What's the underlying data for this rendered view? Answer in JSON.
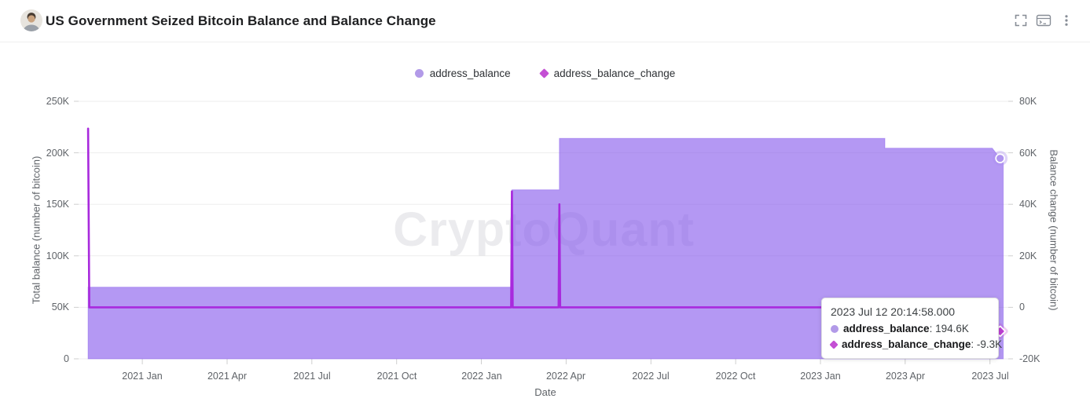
{
  "header": {
    "title": "US Government Seized Bitcoin Balance and Balance Change"
  },
  "icons": {
    "fullscreen": "corner-brackets",
    "console": "terminal-window",
    "menu": "vertical-three-dots",
    "balance_series_marker": "circle",
    "change_series_marker": "diamond"
  },
  "colors": {
    "area_fill": "#B198F1",
    "area_base": "#8658EB",
    "change_line": "#A829DD",
    "legend_circle": "#B29AE8",
    "legend_diamond": "#C44FD4",
    "grid": "#EDEDED",
    "tick_text": "#5F6368"
  },
  "legend": {
    "items": [
      {
        "label": "address_balance",
        "marker": "circle",
        "color": "#B29AE8"
      },
      {
        "label": "address_balance_change",
        "marker": "diamond",
        "color": "#C44FD4"
      }
    ]
  },
  "axes": {
    "left": {
      "title": "Total balance (number of bitcoin)",
      "ticks": [
        "250K",
        "200K",
        "150K",
        "100K",
        "50K",
        "0"
      ]
    },
    "right": {
      "title": "Balance change (number of bitcoin)",
      "ticks": [
        "80K",
        "60K",
        "40K",
        "20K",
        "0",
        "-20K"
      ]
    },
    "x": {
      "title": "Date",
      "ticks": [
        "2021 Jan",
        "2021 Apr",
        "2021 Jul",
        "2021 Oct",
        "2022 Jan",
        "2022 Apr",
        "2022 Jul",
        "2022 Oct",
        "2023 Jan",
        "2023 Apr",
        "2023 Jul"
      ]
    }
  },
  "watermark": "CryptoQuant",
  "tooltip": {
    "timestamp": "2023 Jul 12 20:14:58.000",
    "separator": ": ",
    "rows": [
      {
        "label": "address_balance",
        "value": "194.6K",
        "marker": "circle",
        "color": "#B29AE8"
      },
      {
        "label": "address_balance_change",
        "value": "-9.3K",
        "marker": "diamond",
        "color": "#C44FD4"
      }
    ]
  },
  "chart_data": {
    "type": "area",
    "title": "US Government Seized Bitcoin Balance and Balance Change",
    "grid": "horizontal",
    "legend_position": "top-center",
    "x_axis": {
      "label": "Date",
      "unit": "decimal_year",
      "tick_values": [
        2021.0,
        2021.25,
        2021.5,
        2021.75,
        2022.0,
        2022.25,
        2022.5,
        2022.75,
        2023.0,
        2023.25,
        2023.5
      ],
      "tick_labels": [
        "2021 Jan",
        "2021 Apr",
        "2021 Jul",
        "2021 Oct",
        "2022 Jan",
        "2022 Apr",
        "2022 Jul",
        "2022 Oct",
        "2023 Jan",
        "2023 Apr",
        "2023 Jul"
      ]
    },
    "y_left": {
      "label": "Total balance (number of bitcoin)",
      "range": [
        0,
        250000
      ],
      "ticks": [
        0,
        50000,
        100000,
        150000,
        200000,
        250000
      ]
    },
    "y_right": {
      "label": "Balance change (number of bitcoin)",
      "range": [
        -20000,
        80000
      ],
      "ticks": [
        -20000,
        0,
        20000,
        40000,
        60000,
        80000
      ]
    },
    "series": [
      {
        "name": "address_balance",
        "type": "step-area",
        "y_axis": "left",
        "color": "#8658EB",
        "fill_opacity": 0.62,
        "points": [
          {
            "t": 2020.84,
            "date": "2020 Nov",
            "value": 69600
          },
          {
            "t": 2022.09,
            "date": "2022 Feb",
            "value": 164000
          },
          {
            "t": 2022.23,
            "date": "2022 Mar",
            "value": 214000
          },
          {
            "t": 2023.19,
            "date": "2023 Mar",
            "value": 204500
          },
          {
            "t": 2023.53,
            "date": "2023 Jul 12",
            "value": 194600
          }
        ],
        "end_marker": {
          "t": 2023.53,
          "value": 194600
        }
      },
      {
        "name": "address_balance_change",
        "type": "spike-line",
        "y_axis": "right",
        "color": "#A829DD",
        "baseline": 0,
        "spikes": [
          {
            "t": 2020.84,
            "date": "2020 Nov",
            "value": 69400
          },
          {
            "t": 2022.09,
            "date": "2022 Feb",
            "value": 45000
          },
          {
            "t": 2022.23,
            "date": "2022 Mar",
            "value": 40000
          },
          {
            "t": 2023.53,
            "date": "2023 Jul 12",
            "value": -9300
          }
        ],
        "end_marker": {
          "t": 2023.53,
          "value": -9300
        }
      }
    ]
  }
}
